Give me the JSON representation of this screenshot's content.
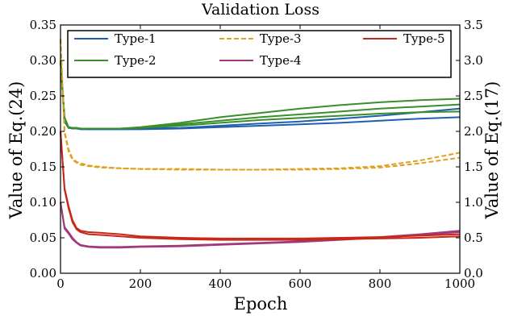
{
  "chart_data": {
    "type": "line",
    "title": "Validation Loss",
    "xlabel": "Epoch",
    "ylabel_left": "Value of Eq.(24)",
    "ylabel_right": "Value of Eq.(17)",
    "xlim": [
      0,
      1000
    ],
    "ylim_left": [
      0.0,
      0.35
    ],
    "ylim_right": [
      0.0,
      3.5
    ],
    "x_ticks": [
      0,
      200,
      400,
      600,
      800,
      1000
    ],
    "x_tick_labels": [
      "0",
      "200",
      "400",
      "600",
      "800",
      "1000"
    ],
    "y_left_ticks": [
      0.0,
      0.05,
      0.1,
      0.15,
      0.2,
      0.25,
      0.3,
      0.35
    ],
    "y_left_tick_labels": [
      "0.00",
      "0.05",
      "0.10",
      "0.15",
      "0.20",
      "0.25",
      "0.30",
      "0.35"
    ],
    "y_right_ticks": [
      0.0,
      0.5,
      1.0,
      1.5,
      2.0,
      2.5,
      3.0,
      3.5
    ],
    "y_right_tick_labels": [
      "0.0",
      "0.5",
      "1.0",
      "1.5",
      "2.0",
      "2.5",
      "3.0",
      "3.5"
    ],
    "grid": false,
    "legend": {
      "placement": "top",
      "columns": 3,
      "entries": [
        {
          "label": "Type-1",
          "color": "#1f5fb0",
          "dash": "solid"
        },
        {
          "label": "Type-2",
          "color": "#3a8f2c",
          "dash": "solid"
        },
        {
          "label": "Type-3",
          "color": "#e0a020",
          "dash": "dashed"
        },
        {
          "label": "Type-4",
          "color": "#a03a7a",
          "dash": "solid"
        },
        {
          "label": "Type-5",
          "color": "#c8281a",
          "dash": "solid"
        }
      ]
    },
    "x": [
      0,
      10,
      20,
      30,
      40,
      50,
      70,
      100,
      150,
      200,
      300,
      400,
      500,
      600,
      700,
      800,
      900,
      1000
    ],
    "series": [
      {
        "name": "Type-1",
        "color": "#1f5fb0",
        "dash": "solid",
        "values": [
          0.3,
          0.215,
          0.206,
          0.205,
          0.204,
          0.204,
          0.203,
          0.203,
          0.203,
          0.203,
          0.204,
          0.206,
          0.208,
          0.21,
          0.212,
          0.215,
          0.218,
          0.22
        ]
      },
      {
        "name": "Type-1",
        "color": "#1f5fb0",
        "dash": "solid",
        "values": [
          0.3,
          0.214,
          0.205,
          0.204,
          0.204,
          0.203,
          0.203,
          0.203,
          0.203,
          0.204,
          0.205,
          0.208,
          0.211,
          0.214,
          0.218,
          0.222,
          0.227,
          0.232
        ]
      },
      {
        "name": "Type-2",
        "color": "#3a8f2c",
        "dash": "solid",
        "values": [
          0.3,
          0.22,
          0.206,
          0.205,
          0.205,
          0.204,
          0.204,
          0.204,
          0.204,
          0.205,
          0.208,
          0.212,
          0.216,
          0.219,
          0.222,
          0.225,
          0.227,
          0.228
        ]
      },
      {
        "name": "Type-2",
        "color": "#3a8f2c",
        "dash": "solid",
        "values": [
          0.3,
          0.218,
          0.205,
          0.205,
          0.204,
          0.204,
          0.204,
          0.204,
          0.204,
          0.206,
          0.212,
          0.22,
          0.226,
          0.232,
          0.237,
          0.241,
          0.244,
          0.246
        ]
      },
      {
        "name": "Type-2",
        "color": "#3a8f2c",
        "dash": "solid",
        "values": [
          0.3,
          0.216,
          0.205,
          0.205,
          0.205,
          0.204,
          0.204,
          0.204,
          0.204,
          0.205,
          0.21,
          0.215,
          0.22,
          0.224,
          0.228,
          0.232,
          0.235,
          0.238
        ]
      },
      {
        "name": "Type-3",
        "color": "#e0a020",
        "dash": "dashed",
        "values": [
          0.33,
          0.2,
          0.175,
          0.162,
          0.157,
          0.155,
          0.152,
          0.15,
          0.148,
          0.147,
          0.147,
          0.146,
          0.146,
          0.146,
          0.147,
          0.149,
          0.155,
          0.163
        ]
      },
      {
        "name": "Type-3",
        "color": "#e0a020",
        "dash": "dashed",
        "values": [
          0.33,
          0.198,
          0.172,
          0.16,
          0.156,
          0.153,
          0.151,
          0.149,
          0.148,
          0.147,
          0.146,
          0.146,
          0.146,
          0.147,
          0.148,
          0.151,
          0.159,
          0.17
        ]
      },
      {
        "name": "Type-4",
        "color": "#a03a7a",
        "dash": "solid",
        "values": [
          0.1,
          0.065,
          0.058,
          0.05,
          0.044,
          0.04,
          0.038,
          0.037,
          0.037,
          0.038,
          0.039,
          0.041,
          0.043,
          0.045,
          0.048,
          0.051,
          0.055,
          0.06
        ]
      },
      {
        "name": "Type-4",
        "color": "#a03a7a",
        "dash": "solid",
        "values": [
          0.1,
          0.063,
          0.056,
          0.048,
          0.043,
          0.039,
          0.037,
          0.036,
          0.036,
          0.037,
          0.038,
          0.04,
          0.042,
          0.044,
          0.047,
          0.05,
          0.054,
          0.058
        ]
      },
      {
        "name": "Type-5",
        "color": "#c8281a",
        "dash": "solid",
        "values": [
          0.2,
          0.12,
          0.095,
          0.075,
          0.064,
          0.06,
          0.058,
          0.057,
          0.055,
          0.052,
          0.05,
          0.049,
          0.049,
          0.049,
          0.05,
          0.051,
          0.053,
          0.055
        ]
      },
      {
        "name": "Type-5",
        "color": "#c8281a",
        "dash": "solid",
        "values": [
          0.2,
          0.118,
          0.092,
          0.072,
          0.062,
          0.058,
          0.055,
          0.054,
          0.052,
          0.05,
          0.048,
          0.047,
          0.047,
          0.047,
          0.048,
          0.049,
          0.05,
          0.052
        ]
      }
    ]
  }
}
